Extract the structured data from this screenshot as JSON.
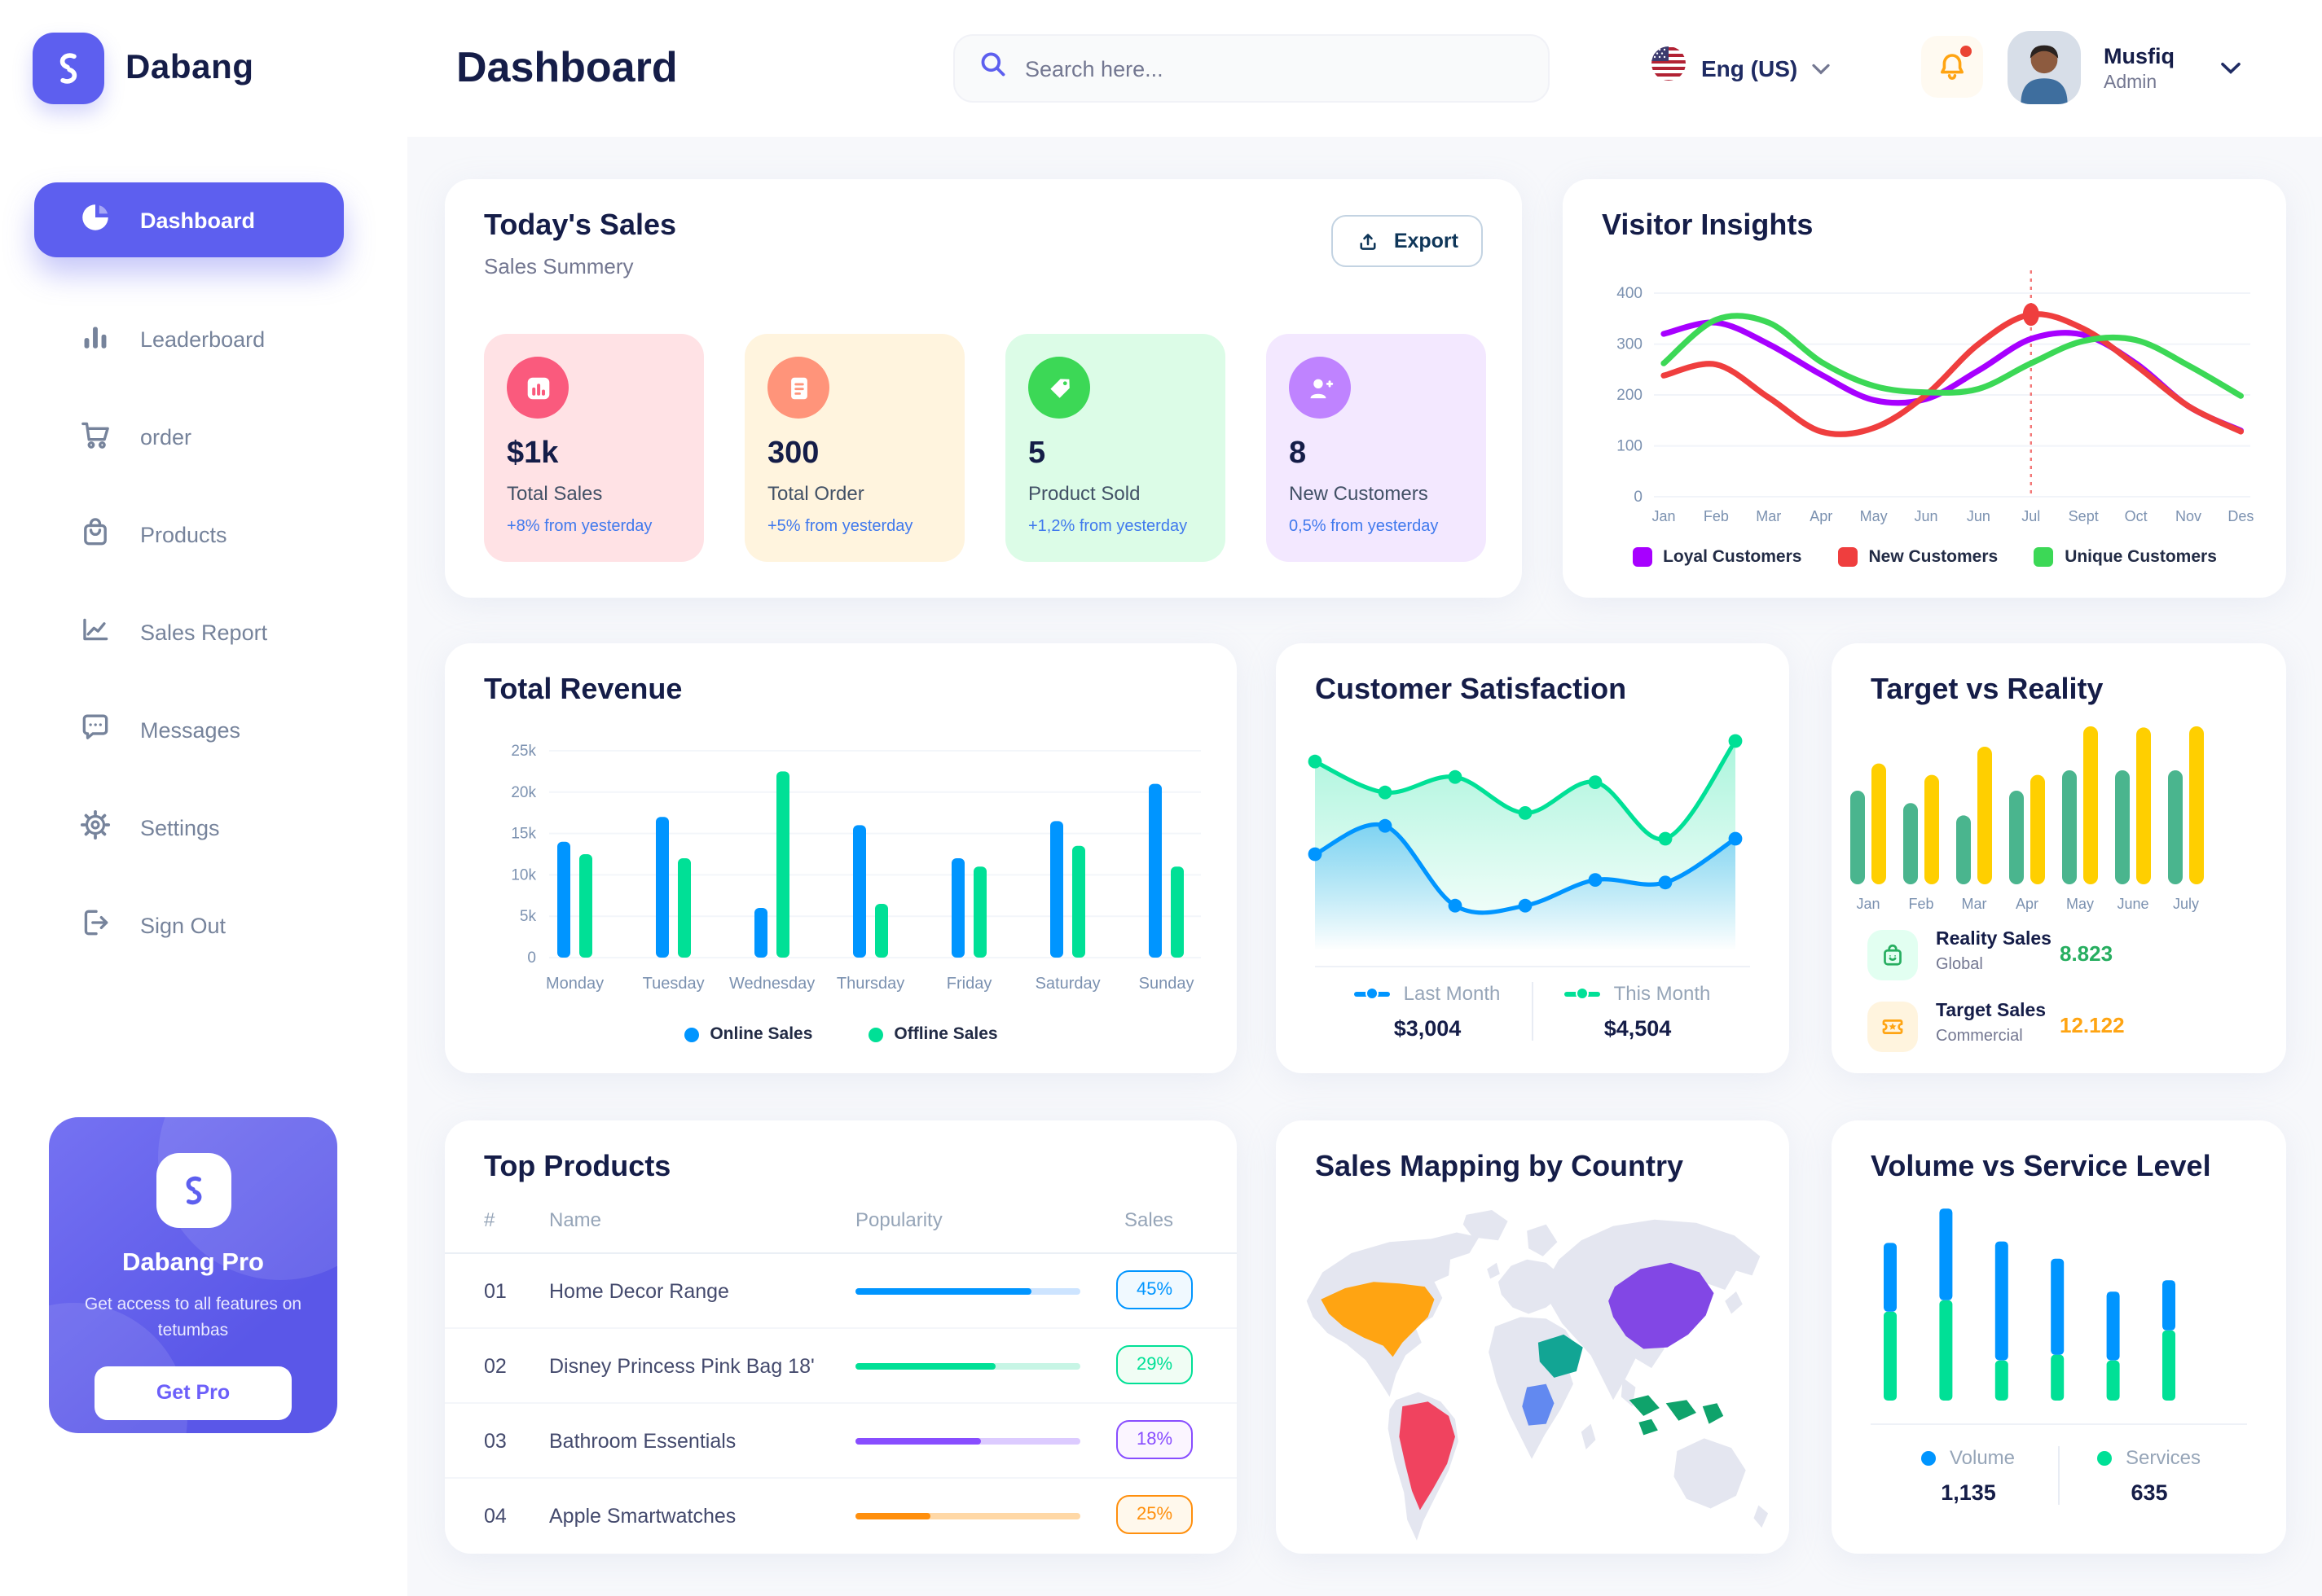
{
  "brand": {
    "name": "Dabang",
    "accent": "#5D5FEF"
  },
  "header": {
    "title": "Dashboard",
    "search_placeholder": "Search here...",
    "language": "Eng (US)",
    "user_name": "Musfiq",
    "user_role": "Admin"
  },
  "sidebar": {
    "items": [
      {
        "label": "Dashboard"
      },
      {
        "label": "Leaderboard"
      },
      {
        "label": "order"
      },
      {
        "label": "Products"
      },
      {
        "label": "Sales Report"
      },
      {
        "label": "Messages"
      },
      {
        "label": "Settings"
      },
      {
        "label": "Sign Out"
      }
    ],
    "pro": {
      "title": "Dabang Pro",
      "subtitle": "Get access to all features on tetumbas",
      "button": "Get Pro"
    }
  },
  "todays_sales": {
    "title": "Today's Sales",
    "subtitle": "Sales Summery",
    "export_label": "Export",
    "stats": [
      {
        "value": "$1k",
        "label": "Total Sales",
        "delta": "+8% from yesterday",
        "bg": "#FFE2E5",
        "icon_bg": "#FA5A7D",
        "icon": "bar-chart-icon"
      },
      {
        "value": "300",
        "label": "Total Order",
        "delta": "+5% from yesterday",
        "bg": "#FFF4DE",
        "icon_bg": "#FF947A",
        "icon": "file-icon"
      },
      {
        "value": "5",
        "label": "Product Sold",
        "delta": "+1,2% from yesterday",
        "bg": "#DCFCE7",
        "icon_bg": "#3CD856",
        "icon": "tag-icon"
      },
      {
        "value": "8",
        "label": "New Customers",
        "delta": "0,5% from yesterday",
        "bg": "#F3E8FF",
        "icon_bg": "#BF83FF",
        "icon": "user-plus-icon"
      }
    ]
  },
  "visitor_insights": {
    "title": "Visitor Insights",
    "type": "line",
    "months": [
      "Jan",
      "Feb",
      "Mar",
      "Apr",
      "May",
      "Jun",
      "Jun",
      "Jul",
      "Sept",
      "Oct",
      "Nov",
      "Des"
    ],
    "y_ticks": [
      0,
      100,
      200,
      300,
      400
    ],
    "series": [
      {
        "name": "Loyal Customers",
        "color": "#A700FF",
        "values": [
          320,
          342,
          300,
          240,
          190,
          192,
          248,
          310,
          318,
          262,
          178,
          130
        ]
      },
      {
        "name": "New Customers",
        "color": "#EF3E3E",
        "values": [
          238,
          260,
          195,
          128,
          135,
          200,
          300,
          358,
          330,
          258,
          178,
          128
        ]
      },
      {
        "name": "Unique Customers",
        "color": "#3CD856",
        "values": [
          262,
          348,
          342,
          265,
          218,
          205,
          212,
          262,
          306,
          308,
          258,
          198
        ]
      }
    ],
    "marker": {
      "series": "New Customers",
      "month_index": 7,
      "value": 358
    }
  },
  "total_revenue": {
    "title": "Total Revenue",
    "type": "bar",
    "days": [
      "Monday",
      "Tuesday",
      "Wednesday",
      "Thursday",
      "Friday",
      "Saturday",
      "Sunday"
    ],
    "y_ticks": [
      "0",
      "5k",
      "10k",
      "15k",
      "20k",
      "25k"
    ],
    "ymax_k": 25,
    "series": [
      {
        "name": "Online Sales",
        "color": "#0095FF",
        "values": [
          14,
          17,
          6,
          16,
          12,
          16.5,
          21
        ]
      },
      {
        "name": "Offline Sales",
        "color": "#00E096",
        "values": [
          12.5,
          12,
          22.5,
          6.5,
          11,
          13.5,
          11
        ]
      }
    ]
  },
  "customer_satisfaction": {
    "title": "Customer Satisfaction",
    "type": "area",
    "series": [
      {
        "name": "Last Month",
        "color": "#0095FF",
        "total": "$3,004",
        "values": [
          46,
          57,
          26,
          26,
          36,
          35,
          52
        ]
      },
      {
        "name": "This Month",
        "color": "#00E096",
        "total": "$4,504",
        "values": [
          82,
          70,
          76,
          62,
          74,
          52,
          90
        ]
      }
    ]
  },
  "target_vs_reality": {
    "title": "Target vs Reality",
    "type": "bar",
    "months": [
      "Jan",
      "Feb",
      "Mar",
      "Apr",
      "May",
      "June",
      "July"
    ],
    "series": [
      {
        "name": "Reality Sales",
        "color": "#4AB58E",
        "values": [
          8.3,
          7.2,
          6.1,
          8.3,
          10.1,
          10.1,
          10.1
        ]
      },
      {
        "name": "Target Sales",
        "color": "#FFCF00",
        "values": [
          10.7,
          9.7,
          12.2,
          9.7,
          14,
          13.9,
          14
        ]
      }
    ],
    "legend": [
      {
        "label": "Reality Sales",
        "sub": "Global",
        "value": "8.823",
        "value_color": "#27AE60",
        "icon_bg": "#E2FFF1",
        "icon": "bag-icon"
      },
      {
        "label": "Target Sales",
        "sub": "Commercial",
        "value": "12.122",
        "value_color": "#FFA412",
        "icon_bg": "#FFF4DE",
        "icon": "ticket-icon"
      }
    ]
  },
  "top_products": {
    "title": "Top Products",
    "headers": [
      "#",
      "Name",
      "Popularity",
      "Sales"
    ],
    "rows": [
      {
        "num": "01",
        "name": "Home Decor Range",
        "fill_pct": 78,
        "color": "#0095FF",
        "track": "#CDE4FF",
        "sales": "45%",
        "badge_bg": "#F0F9FF"
      },
      {
        "num": "02",
        "name": "Disney Princess Pink Bag 18'",
        "fill_pct": 62,
        "color": "#00E096",
        "track": "#C7F5E5",
        "sales": "29%",
        "badge_bg": "#F0FDF4"
      },
      {
        "num": "03",
        "name": "Bathroom Essentials",
        "fill_pct": 56,
        "color": "#884DFF",
        "track": "#DCCBFF",
        "sales": "18%",
        "badge_bg": "#FBF5FF"
      },
      {
        "num": "04",
        "name": "Apple Smartwatches",
        "fill_pct": 33,
        "color": "#FF8F0D",
        "track": "#FFD8A6",
        "sales": "25%",
        "badge_bg": "#FFF8EC"
      }
    ]
  },
  "sales_map": {
    "title": "Sales Mapping by Country",
    "land_color": "#E4E6F0",
    "countries": [
      {
        "name": "United States",
        "color": "#FFA412"
      },
      {
        "name": "Brazil",
        "color": "#F0435F"
      },
      {
        "name": "DR Congo",
        "color": "#6289F0"
      },
      {
        "name": "Saudi Arabia",
        "color": "#12A594"
      },
      {
        "name": "China",
        "color": "#8247E5"
      },
      {
        "name": "Indonesia",
        "color": "#0FA36B"
      }
    ]
  },
  "volume_service": {
    "title": "Volume vs Service Level",
    "type": "stacked-bar",
    "series": [
      {
        "name": "Volume",
        "color": "#0095FF",
        "total": "1,135",
        "values": [
          48,
          64,
          83,
          67,
          48,
          35
        ]
      },
      {
        "name": "Services",
        "color": "#00E096",
        "total": "635",
        "values": [
          62,
          70,
          28,
          32,
          28,
          49
        ]
      }
    ]
  }
}
